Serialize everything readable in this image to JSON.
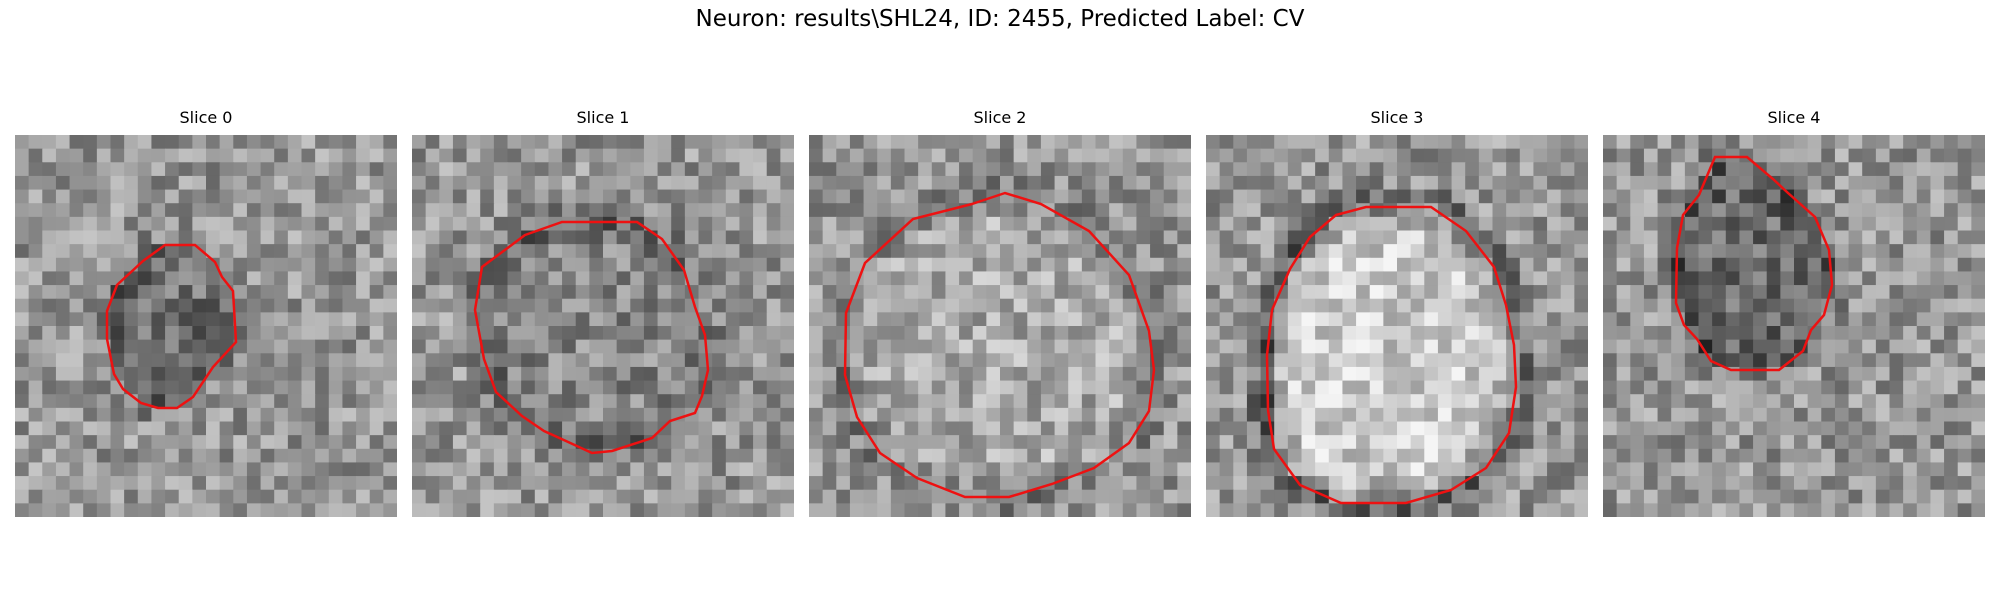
{
  "figure": {
    "title": "Neuron: results\\SHL24, ID: 2455, Predicted Label: CV",
    "outline_color": "#ee1111",
    "panels": [
      {
        "title": "Slice 0"
      },
      {
        "title": "Slice 1"
      },
      {
        "title": "Slice 2"
      },
      {
        "title": "Slice 3"
      },
      {
        "title": "Slice 4"
      }
    ]
  }
}
